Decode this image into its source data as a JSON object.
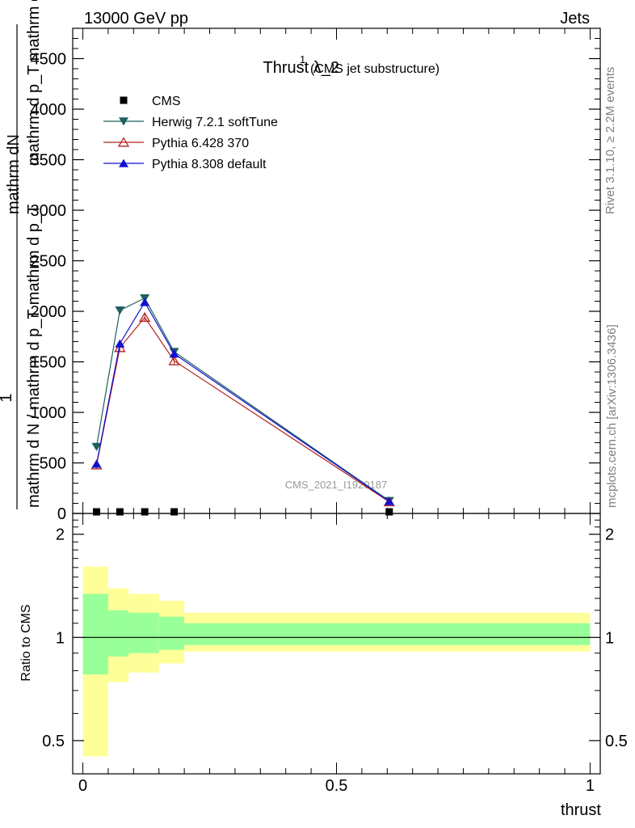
{
  "header": {
    "left": "13000 GeV pp",
    "right": "Jets"
  },
  "side_text": {
    "rivet": "Rivet 3.1.10, ≥ 2.2M events",
    "mcplots": "mcplots.cern.ch [arXiv:1306.3436]"
  },
  "chart_data": [
    {
      "type": "line",
      "title": "Thrust λ_2",
      "title_superscript": "1",
      "subtitle": "(CMS jet substructure)",
      "watermark": "CMS_2021_I1920187",
      "ylabel_numerator": "mathrm dN",
      "ylabel_numerator_extra": "mathrm d p_T mathrm d lambda",
      "ylabel_one": "1",
      "ylabel_denominator": "mathrm d N / mathrm d p_T mathrm d p_T",
      "xlim": [
        -0.02,
        1.02
      ],
      "ylim": [
        0,
        4800
      ],
      "yticks": [
        0,
        500,
        1000,
        1500,
        2000,
        2500,
        3000,
        3500,
        4000,
        4500
      ],
      "ytick_labels": [
        "0",
        "500",
        "1000",
        "1500",
        "2000",
        "2500",
        "3000",
        "3500",
        "4000",
        "4500"
      ],
      "grid": false,
      "legend_position": "top-left",
      "series": [
        {
          "name": "CMS",
          "color": "#000000",
          "marker": "square",
          "x": [
            0.027,
            0.073,
            0.122,
            0.18,
            0.604
          ],
          "y": [
            0,
            0,
            0,
            0,
            0
          ]
        },
        {
          "name": "Herwig 7.2.1 softTune",
          "color": "#1f5f5f",
          "marker": "triangle-down",
          "x": [
            0.027,
            0.073,
            0.122,
            0.18,
            0.604
          ],
          "y": [
            660,
            2010,
            2130,
            1600,
            125
          ]
        },
        {
          "name": "Pythia 6.428 370",
          "color": "#b22222",
          "marker": "triangle-up-open",
          "x": [
            0.027,
            0.073,
            0.122,
            0.18,
            0.604
          ],
          "y": [
            480,
            1640,
            1940,
            1510,
            115
          ]
        },
        {
          "name": "Pythia 8.308 default",
          "color": "#1010d0",
          "marker": "triangle-up",
          "x": [
            0.027,
            0.073,
            0.122,
            0.18,
            0.604
          ],
          "y": [
            490,
            1680,
            2090,
            1580,
            120
          ]
        }
      ]
    },
    {
      "type": "area",
      "ylabel": "Ratio to CMS",
      "xlabel": "thrust",
      "xlim": [
        -0.02,
        1.02
      ],
      "ylim": [
        0.4,
        2.3
      ],
      "yticks": [
        0.5,
        1,
        2
      ],
      "ytick_labels": [
        "0.5",
        "1",
        "2"
      ],
      "xticks": [
        0,
        0.5,
        1
      ],
      "xtick_labels": [
        "0",
        "0.5",
        "1"
      ],
      "bins": [
        {
          "x0": 0.0,
          "x1": 0.05,
          "inner": [
            0.78,
            1.34
          ],
          "outer": [
            0.45,
            1.61
          ]
        },
        {
          "x0": 0.05,
          "x1": 0.09,
          "inner": [
            0.88,
            1.2
          ],
          "outer": [
            0.74,
            1.39
          ]
        },
        {
          "x0": 0.09,
          "x1": 0.15,
          "inner": [
            0.9,
            1.18
          ],
          "outer": [
            0.79,
            1.34
          ]
        },
        {
          "x0": 0.15,
          "x1": 0.2,
          "inner": [
            0.92,
            1.15
          ],
          "outer": [
            0.84,
            1.28
          ]
        },
        {
          "x0": 0.2,
          "x1": 1.0,
          "inner": [
            0.95,
            1.1
          ],
          "outer": [
            0.91,
            1.18
          ]
        }
      ],
      "inner_color": "#99ff99",
      "outer_color": "#ffff99"
    }
  ]
}
